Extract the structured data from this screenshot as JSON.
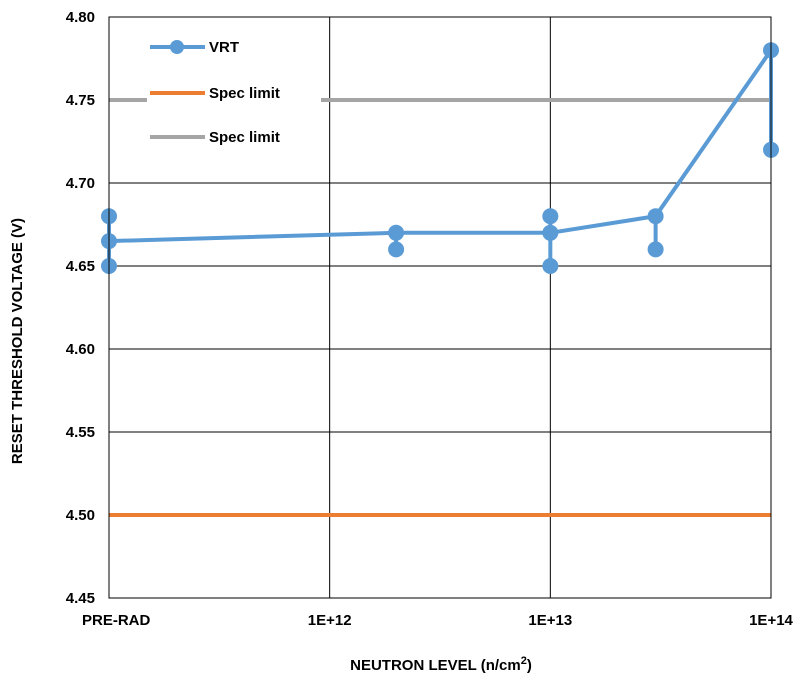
{
  "chart_data": {
    "type": "line",
    "title": "",
    "xlabel": "NEUTRON LEVEL (n/cm",
    "xlabel_superscript": "2",
    "xlabel_suffix": ")",
    "ylabel": "RESET THRESHOLD VOLTAGE (V)",
    "ylim": [
      4.45,
      4.8
    ],
    "y_ticks": [
      "4.45",
      "4.50",
      "4.55",
      "4.60",
      "4.65",
      "4.70",
      "4.75",
      "4.80"
    ],
    "x_ticks": [
      "PRE-RAD",
      "1E+12",
      "1E+13",
      "1E+14"
    ],
    "x_scale": "log with PRE-RAD placeholder at left edge",
    "grid": true,
    "legend_position": "top-left inside plot",
    "series": [
      {
        "name": "VRT",
        "color": "#5B9BD5",
        "marker": "circle",
        "points": [
          {
            "x": "PRE-RAD",
            "y": 4.68
          },
          {
            "x": "PRE-RAD",
            "y": 4.665
          },
          {
            "x": "PRE-RAD",
            "y": 4.65
          },
          {
            "x": "PRE-RAD",
            "y": 4.665
          },
          {
            "x": 2000000000000.0,
            "y": 4.67
          },
          {
            "x": 2000000000000.0,
            "y": 4.66
          },
          {
            "x": 2000000000000.0,
            "y": 4.67
          },
          {
            "x": 10000000000000.0,
            "y": 4.67
          },
          {
            "x": 10000000000000.0,
            "y": 4.68
          },
          {
            "x": 10000000000000.0,
            "y": 4.65
          },
          {
            "x": 10000000000000.0,
            "y": 4.67
          },
          {
            "x": 30000000000000.0,
            "y": 4.68
          },
          {
            "x": 30000000000000.0,
            "y": 4.66
          },
          {
            "x": 30000000000000.0,
            "y": 4.68
          },
          {
            "x": 100000000000000.0,
            "y": 4.78
          },
          {
            "x": 100000000000000.0,
            "y": 4.72
          }
        ]
      },
      {
        "name": "Spec limit",
        "color": "#ED7D31",
        "value": 4.5
      },
      {
        "name": "Spec limit",
        "color": "#A5A5A5",
        "value": 4.75
      }
    ]
  }
}
